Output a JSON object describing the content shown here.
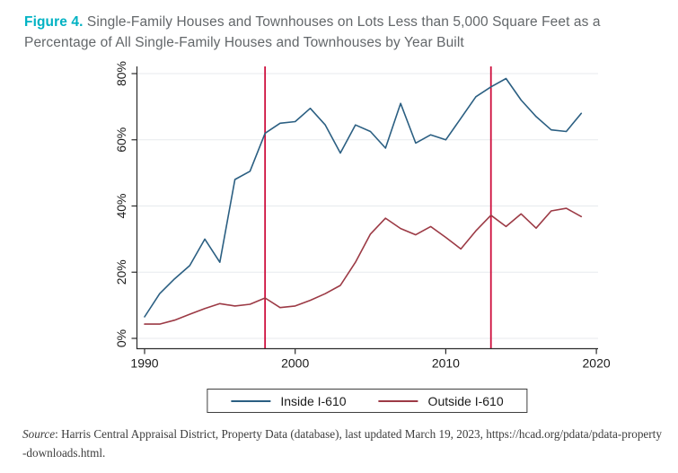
{
  "figure": {
    "label": "Figure 4.",
    "title": "Single-Family Houses and Townhouses on Lots Less than 5,000 Square Feet as a Percentage of All Single-Family Houses and Townhouses by Year Built"
  },
  "chart_data": {
    "type": "line",
    "x": [
      1990,
      1991,
      1992,
      1993,
      1994,
      1995,
      1996,
      1997,
      1998,
      1999,
      2000,
      2001,
      2002,
      2003,
      2004,
      2005,
      2006,
      2007,
      2008,
      2009,
      2010,
      2011,
      2012,
      2013,
      2014,
      2015,
      2016,
      2017,
      2018,
      2019
    ],
    "series": [
      {
        "name": "Inside I-610",
        "color": "#2b5f82",
        "values": [
          6.5,
          13.5,
          18,
          22,
          30,
          23,
          48,
          50.5,
          62,
          65,
          65.5,
          69.5,
          64.5,
          56,
          64.5,
          62.5,
          57.5,
          71,
          59,
          61.5,
          60,
          66.5,
          73,
          76,
          78.5,
          72,
          67,
          63,
          62.5,
          68
        ]
      },
      {
        "name": "Outside I-610",
        "color": "#9c3a45",
        "values": [
          4.3,
          4.3,
          5.5,
          7.3,
          9,
          10.5,
          9.8,
          10.3,
          12.2,
          9.3,
          9.8,
          11.5,
          13.5,
          16,
          23,
          31.5,
          36.3,
          33.2,
          31.3,
          33.8,
          30.5,
          27,
          32.5,
          37.2,
          33.8,
          37.6,
          33.3,
          38.5,
          39.3,
          36.8
        ]
      }
    ],
    "reference_lines": {
      "years": [
        1998,
        2013
      ],
      "color": "#ce0f3d"
    },
    "x_ticks": [
      1990,
      2000,
      2010,
      2020
    ],
    "y_tick_values": [
      0,
      20,
      40,
      60,
      80
    ],
    "y_tick_labels": [
      "0%",
      "20%",
      "40%",
      "60%",
      "80%"
    ],
    "xlim": [
      1990,
      2020
    ],
    "ylim": [
      0,
      80
    ],
    "grid": true,
    "legend_position": "bottom",
    "title": "",
    "xlabel": "",
    "ylabel": ""
  },
  "source": {
    "word": "Source",
    "rest": ": Harris Central Appraisal District, Property Data (database), last updated March 19, 2023, https://hcad.org/pdata/pdata-property",
    "line2": "-downloads.html."
  }
}
